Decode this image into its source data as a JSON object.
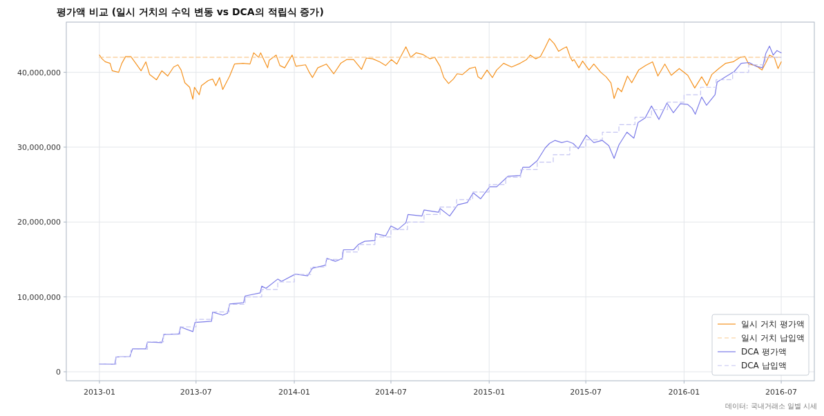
{
  "chart_data": {
    "type": "line",
    "title": "평가액 비교 (일시 거치의 수익 변동 vs DCA의 적립식 증가)",
    "annotations": [
      "데이터: 국내거래소 일별 시세"
    ],
    "xlim": [
      "2012-10-31",
      "2016-09-01"
    ],
    "xticks": [
      "2013-01",
      "2013-07",
      "2014-01",
      "2014-07",
      "2015-01",
      "2015-07",
      "2016-01",
      "2016-07"
    ],
    "ylim": [
      -1200000,
      46700000
    ],
    "yticks": [
      {
        "value": 0,
        "label": "0"
      },
      {
        "value": 10000000,
        "label": "10,000,000"
      },
      {
        "value": 20000000,
        "label": "20,000,000"
      },
      {
        "value": 30000000,
        "label": "30,000,000"
      },
      {
        "value": 40000000,
        "label": "40,000,000"
      }
    ],
    "grid": true,
    "legend": "bottom right",
    "series": [
      {
        "name": "일시 거치 평가액",
        "color": "#f5921e",
        "line_style": "solid",
        "x": [
          "2013-01-01",
          "2013-01-06",
          "2013-01-12",
          "2013-01-21",
          "2013-01-25",
          "2013-02-06",
          "2013-02-12",
          "2013-02-19",
          "2013-03-01",
          "2013-03-20",
          "2013-03-29",
          "2013-04-05",
          "2013-04-18",
          "2013-04-28",
          "2013-05-09",
          "2013-05-20",
          "2013-05-28",
          "2013-06-03",
          "2013-06-10",
          "2013-06-19",
          "2013-06-25",
          "2013-06-28",
          "2013-07-07",
          "2013-07-11",
          "2013-07-24",
          "2013-08-01",
          "2013-08-07",
          "2013-08-14",
          "2013-08-20",
          "2013-09-02",
          "2013-09-11",
          "2013-09-27",
          "2013-10-10",
          "2013-10-17",
          "2013-10-26",
          "2013-10-30",
          "2013-11-12",
          "2013-11-15",
          "2013-11-28",
          "2013-12-05",
          "2013-12-14",
          "2013-12-28",
          "2014-01-04",
          "2014-01-22",
          "2014-01-29",
          "2014-02-04",
          "2014-02-14",
          "2014-03-02",
          "2014-03-16",
          "2014-03-29",
          "2014-04-09",
          "2014-04-22",
          "2014-05-07",
          "2014-05-16",
          "2014-05-28",
          "2014-06-10",
          "2014-06-21",
          "2014-07-02",
          "2014-07-12",
          "2014-07-29",
          "2014-08-07",
          "2014-08-17",
          "2014-08-29",
          "2014-09-12",
          "2014-09-21",
          "2014-10-01",
          "2014-10-08",
          "2014-10-17",
          "2014-10-26",
          "2014-11-02",
          "2014-11-12",
          "2014-11-25",
          "2014-12-06",
          "2014-12-11",
          "2014-12-17",
          "2014-12-28",
          "2015-01-07",
          "2015-01-15",
          "2015-01-28",
          "2015-02-12",
          "2015-02-28",
          "2015-03-12",
          "2015-03-19",
          "2015-03-29",
          "2015-04-07",
          "2015-04-15",
          "2015-04-24",
          "2015-05-03",
          "2015-05-11",
          "2015-05-20",
          "2015-05-26",
          "2015-06-02",
          "2015-06-06",
          "2015-06-09",
          "2015-06-18",
          "2015-06-25",
          "2015-07-07",
          "2015-07-16",
          "2015-07-29",
          "2015-08-08",
          "2015-08-17",
          "2015-08-23",
          "2015-08-30",
          "2015-09-06",
          "2015-09-17",
          "2015-09-25",
          "2015-10-08",
          "2015-10-21",
          "2015-11-03",
          "2015-11-13",
          "2015-11-26",
          "2015-12-08",
          "2015-12-23",
          "2016-01-08",
          "2016-01-21",
          "2016-02-03",
          "2016-02-13",
          "2016-02-22",
          "2016-03-06",
          "2016-03-19",
          "2016-04-02",
          "2016-04-15",
          "2016-04-24",
          "2016-05-01",
          "2016-05-14",
          "2016-05-26",
          "2016-06-03",
          "2016-06-09",
          "2016-06-18",
          "2016-06-25",
          "2016-07-01"
        ],
        "values": [
          42300000,
          41800000,
          41400000,
          41200000,
          40200000,
          40000000,
          41200000,
          42100000,
          42100000,
          40200000,
          41400000,
          39700000,
          39000000,
          40200000,
          39500000,
          40700000,
          41000000,
          40300000,
          38600000,
          38000000,
          36400000,
          38000000,
          37000000,
          38200000,
          38900000,
          39100000,
          38200000,
          39300000,
          37700000,
          39500000,
          41100000,
          41200000,
          41100000,
          42600000,
          42000000,
          42600000,
          40600000,
          41600000,
          42300000,
          40900000,
          40600000,
          42300000,
          40800000,
          41000000,
          40000000,
          39300000,
          40600000,
          41100000,
          39800000,
          41200000,
          41700000,
          41700000,
          40400000,
          41900000,
          41800000,
          41400000,
          40900000,
          41700000,
          41100000,
          43400000,
          42000000,
          42600000,
          42400000,
          41800000,
          42000000,
          40800000,
          39300000,
          38500000,
          39100000,
          39800000,
          39700000,
          40500000,
          40700000,
          39400000,
          39100000,
          40300000,
          39300000,
          40300000,
          41200000,
          40700000,
          41200000,
          41700000,
          42300000,
          41800000,
          42100000,
          43200000,
          44500000,
          43800000,
          42800000,
          43200000,
          43400000,
          42000000,
          41500000,
          41700000,
          40600000,
          41500000,
          40300000,
          41100000,
          40000000,
          39400000,
          38600000,
          36500000,
          37900000,
          37400000,
          39500000,
          38600000,
          40300000,
          40900000,
          41400000,
          39500000,
          41100000,
          39600000,
          40500000,
          39600000,
          37900000,
          39400000,
          38200000,
          39700000,
          40500000,
          41200000,
          41400000,
          42000000,
          42100000,
          41100000,
          40900000,
          40300000,
          41400000,
          42300000,
          42000000,
          40500000,
          41400000
        ]
      },
      {
        "name": "일시 거치 납입액",
        "color": "#f9c98f",
        "line_style": "dashed",
        "x": [
          "2013-01-01",
          "2016-07-01"
        ],
        "values": [
          42000000,
          42000000
        ]
      },
      {
        "name": "DCA 평가액",
        "color": "#7b7be8",
        "line_style": "solid",
        "x": [
          "2013-01-01",
          "2013-01-30",
          "2013-02-01",
          "2013-02-27",
          "2013-03-04",
          "2013-03-29",
          "2013-04-01",
          "2013-04-28",
          "2013-05-02",
          "2013-05-30",
          "2013-06-02",
          "2013-06-25",
          "2013-06-29",
          "2013-07-30",
          "2013-08-01",
          "2013-08-20",
          "2013-08-29",
          "2013-09-02",
          "2013-09-28",
          "2013-10-01",
          "2013-10-29",
          "2013-11-01",
          "2013-11-09",
          "2013-12-01",
          "2013-12-08",
          "2014-01-03",
          "2014-01-26",
          "2014-02-04",
          "2014-02-28",
          "2014-03-03",
          "2014-03-19",
          "2014-04-01",
          "2014-04-03",
          "2014-04-22",
          "2014-05-01",
          "2014-05-13",
          "2014-06-01",
          "2014-06-02",
          "2014-06-21",
          "2014-07-01",
          "2014-07-14",
          "2014-07-29",
          "2014-08-02",
          "2014-08-28",
          "2014-09-01",
          "2014-09-28",
          "2014-10-01",
          "2014-10-19",
          "2014-11-03",
          "2014-11-21",
          "2014-12-02",
          "2014-12-16",
          "2015-01-02",
          "2015-01-15",
          "2015-02-05",
          "2015-02-28",
          "2015-03-05",
          "2015-03-17",
          "2015-04-01",
          "2015-04-16",
          "2015-04-24",
          "2015-05-04",
          "2015-05-17",
          "2015-05-27",
          "2015-06-07",
          "2015-06-17",
          "2015-07-02",
          "2015-07-16",
          "2015-08-01",
          "2015-08-13",
          "2015-08-23",
          "2015-09-01",
          "2015-09-16",
          "2015-09-29",
          "2015-10-07",
          "2015-10-20",
          "2015-11-01",
          "2015-11-15",
          "2015-11-30",
          "2015-12-12",
          "2015-12-25",
          "2016-01-08",
          "2016-01-16",
          "2016-01-22",
          "2016-02-03",
          "2016-02-12",
          "2016-02-28",
          "2016-03-03",
          "2016-03-19",
          "2016-04-04",
          "2016-04-17",
          "2016-05-02",
          "2016-05-15",
          "2016-05-27",
          "2016-06-02",
          "2016-06-09",
          "2016-06-16",
          "2016-06-23",
          "2016-07-01"
        ],
        "values": [
          1040000,
          1000000,
          1970000,
          2030000,
          3050000,
          3050000,
          3970000,
          3880000,
          4990000,
          5050000,
          5980000,
          5360000,
          6590000,
          6740000,
          7970000,
          7570000,
          7820000,
          9050000,
          9210000,
          10130000,
          10530000,
          11430000,
          11150000,
          12380000,
          12070000,
          13050000,
          12810000,
          13830000,
          14230000,
          15150000,
          14750000,
          15150000,
          16290000,
          16290000,
          17000000,
          17430000,
          17520000,
          18450000,
          18140000,
          19470000,
          19000000,
          19900000,
          21000000,
          20800000,
          21600000,
          21300000,
          21800000,
          20800000,
          22300000,
          22600000,
          23900000,
          23100000,
          24700000,
          24700000,
          26100000,
          26200000,
          27300000,
          27300000,
          28200000,
          29900000,
          30500000,
          30900000,
          30600000,
          30800000,
          30500000,
          29800000,
          31600000,
          30600000,
          30900000,
          30200000,
          28500000,
          30300000,
          32000000,
          31200000,
          33300000,
          33900000,
          35500000,
          33700000,
          35900000,
          34600000,
          35800000,
          35700000,
          35200000,
          34400000,
          36700000,
          35600000,
          37000000,
          38700000,
          39400000,
          40100000,
          41200000,
          41300000,
          40800000,
          40600000,
          42500000,
          43500000,
          42300000,
          42900000,
          42600000
        ]
      },
      {
        "name": "DCA 납입액",
        "color": "#c4c4f2",
        "line_style": "dashed",
        "type": "step",
        "x": [
          "2013-01-01",
          "2013-02-01",
          "2013-03-01",
          "2013-04-01",
          "2013-05-01",
          "2013-06-01",
          "2013-07-01",
          "2013-08-01",
          "2013-09-01",
          "2013-10-01",
          "2013-11-01",
          "2013-12-01",
          "2014-01-01",
          "2014-02-01",
          "2014-03-01",
          "2014-04-01",
          "2014-05-01",
          "2014-06-01",
          "2014-07-01",
          "2014-08-01",
          "2014-09-01",
          "2014-10-01",
          "2014-11-01",
          "2014-12-01",
          "2015-01-01",
          "2015-02-01",
          "2015-03-01",
          "2015-04-01",
          "2015-05-01",
          "2015-06-01",
          "2015-07-01",
          "2015-08-01",
          "2015-09-01",
          "2015-10-01",
          "2015-11-01",
          "2015-12-01",
          "2016-01-01",
          "2016-02-01",
          "2016-03-01",
          "2016-04-01",
          "2016-05-01",
          "2016-06-01",
          "2016-07-01"
        ],
        "values": [
          1000000,
          2000000,
          3000000,
          4000000,
          5000000,
          6000000,
          7000000,
          8000000,
          9000000,
          10000000,
          11000000,
          12000000,
          13000000,
          14000000,
          15000000,
          16000000,
          17000000,
          18000000,
          19000000,
          20000000,
          21000000,
          22000000,
          23000000,
          24000000,
          25000000,
          26000000,
          27000000,
          28000000,
          29000000,
          30000000,
          31000000,
          32000000,
          33000000,
          34000000,
          35000000,
          36000000,
          37000000,
          38000000,
          39000000,
          40000000,
          41000000,
          42000000,
          42000000
        ]
      }
    ]
  }
}
